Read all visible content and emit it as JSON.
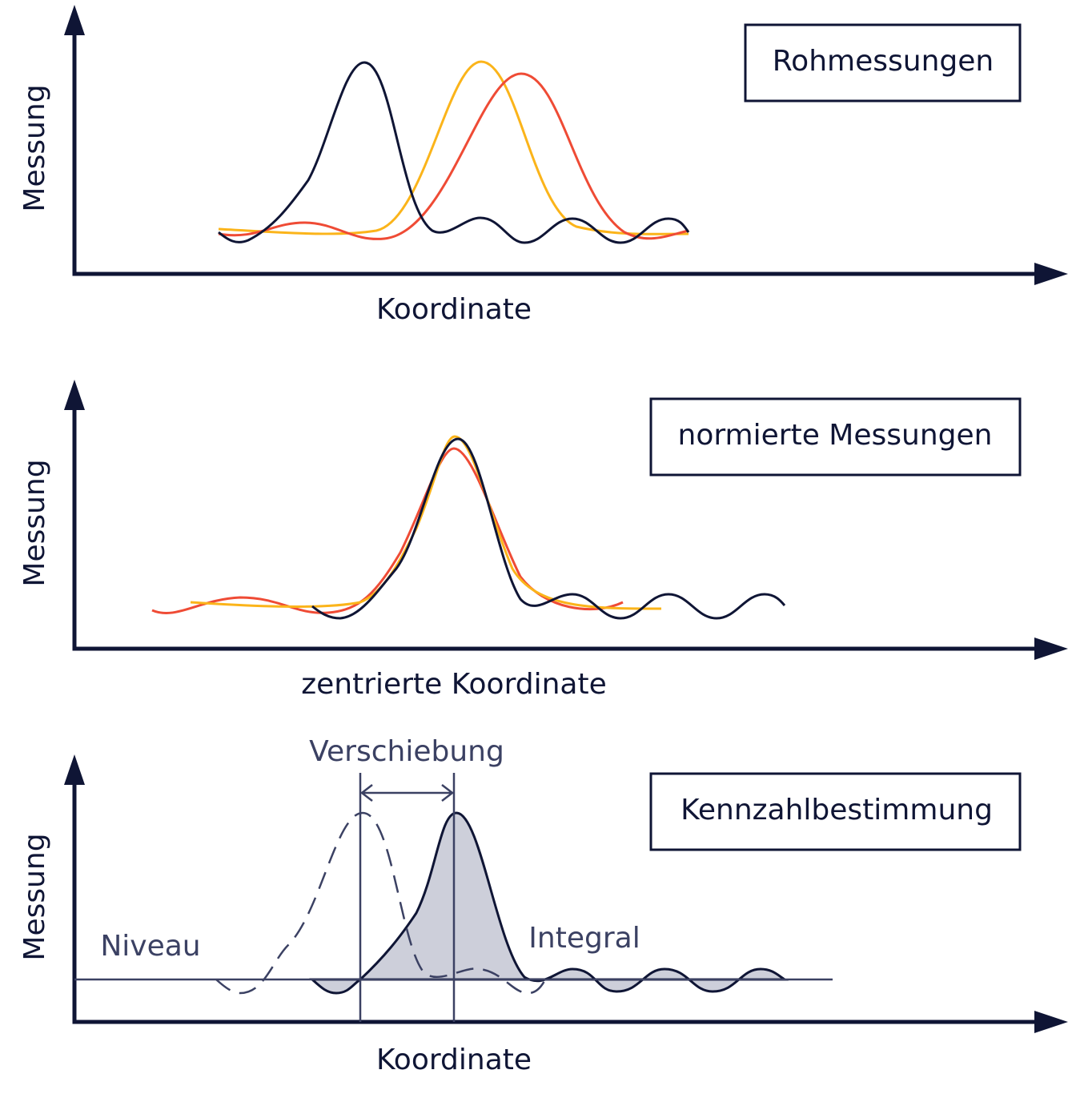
{
  "panels": [
    {
      "label": "Rohmessungen",
      "x_label": "Koordinate",
      "y_label": "Messung"
    },
    {
      "label": "normierte Messungen",
      "x_label": "zentrierte Koordinate",
      "y_label": "Messung"
    },
    {
      "label": "Kennzahlbestimmung",
      "x_label": "Koordinate",
      "y_label": "Messung",
      "annotations": {
        "shift": "Verschiebung",
        "level": "Niveau",
        "integral": "Integral"
      }
    }
  ]
}
